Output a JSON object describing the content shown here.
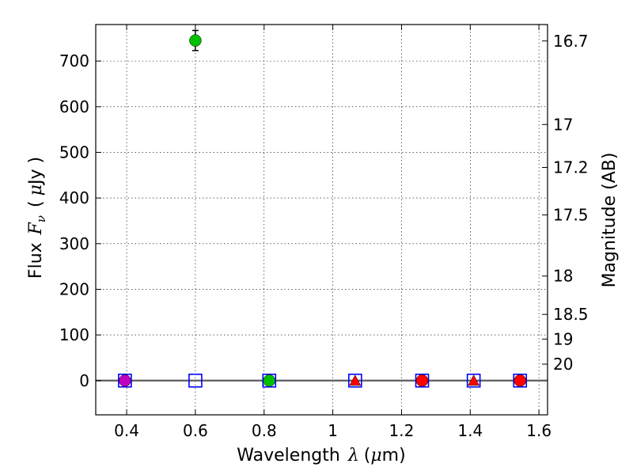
{
  "chart_data": {
    "type": "scatter",
    "xlabel_prefix": "Wavelength",
    "xlabel_symbol": "λ",
    "xlabel_unit_open": "(",
    "xlabel_unit_symbol": "μ",
    "xlabel_unit_rest": "m)",
    "ylabel_prefix": "Flux",
    "ylabel_symbol": "F",
    "ylabel_subscript": "ν",
    "ylabel_unit_open": "(",
    "ylabel_unit_symbol": "μ",
    "ylabel_unit_rest": "Jy )",
    "y2label": "Magnitude (AB)",
    "xlim": [
      0.31,
      1.625
    ],
    "ylim": [
      -75,
      780
    ],
    "xticks": [
      0.4,
      0.6,
      0.8,
      1.0,
      1.2,
      1.4,
      1.6
    ],
    "xtick_labels": [
      "0.4",
      "0.6",
      "0.8",
      "1",
      "1.2",
      "1.4",
      "1.6"
    ],
    "yticks": [
      0,
      100,
      200,
      300,
      400,
      500,
      600,
      700
    ],
    "ytick_labels": [
      "0",
      "100",
      "200",
      "300",
      "400",
      "500",
      "600",
      "700"
    ],
    "y2ticks": [
      {
        "label": "16.7",
        "flux": 744
      },
      {
        "label": "17",
        "flux": 561
      },
      {
        "label": "17.2",
        "flux": 467
      },
      {
        "label": "17.5",
        "flux": 363
      },
      {
        "label": "18",
        "flux": 229
      },
      {
        "label": "18.5",
        "flux": 145
      },
      {
        "label": "19",
        "flux": 91
      },
      {
        "label": "20",
        "flux": 36
      }
    ],
    "grid": true,
    "zero_line": 0,
    "series": [
      {
        "name": "open squares",
        "marker": "square-open",
        "color": "#0000ff",
        "x": [
          0.395,
          0.6,
          0.815,
          1.065,
          1.26,
          1.41,
          1.545
        ],
        "y": [
          0,
          0,
          0,
          0,
          0,
          0,
          0
        ]
      },
      {
        "name": "magenta circle",
        "marker": "circle",
        "color": "#bf00bf",
        "x": [
          0.395
        ],
        "y": [
          0
        ]
      },
      {
        "name": "green circles",
        "marker": "circle",
        "color": "#00bf00",
        "x": [
          0.6,
          0.815
        ],
        "y": [
          745,
          0
        ],
        "yerr": [
          22,
          0
        ]
      },
      {
        "name": "red triangles",
        "marker": "triangle",
        "color": "#ff0000",
        "x": [
          1.065,
          1.41
        ],
        "y": [
          0,
          0
        ]
      },
      {
        "name": "red circles",
        "marker": "circle",
        "color": "#ff0000",
        "x": [
          1.26,
          1.545
        ],
        "y": [
          0,
          0
        ]
      }
    ]
  }
}
